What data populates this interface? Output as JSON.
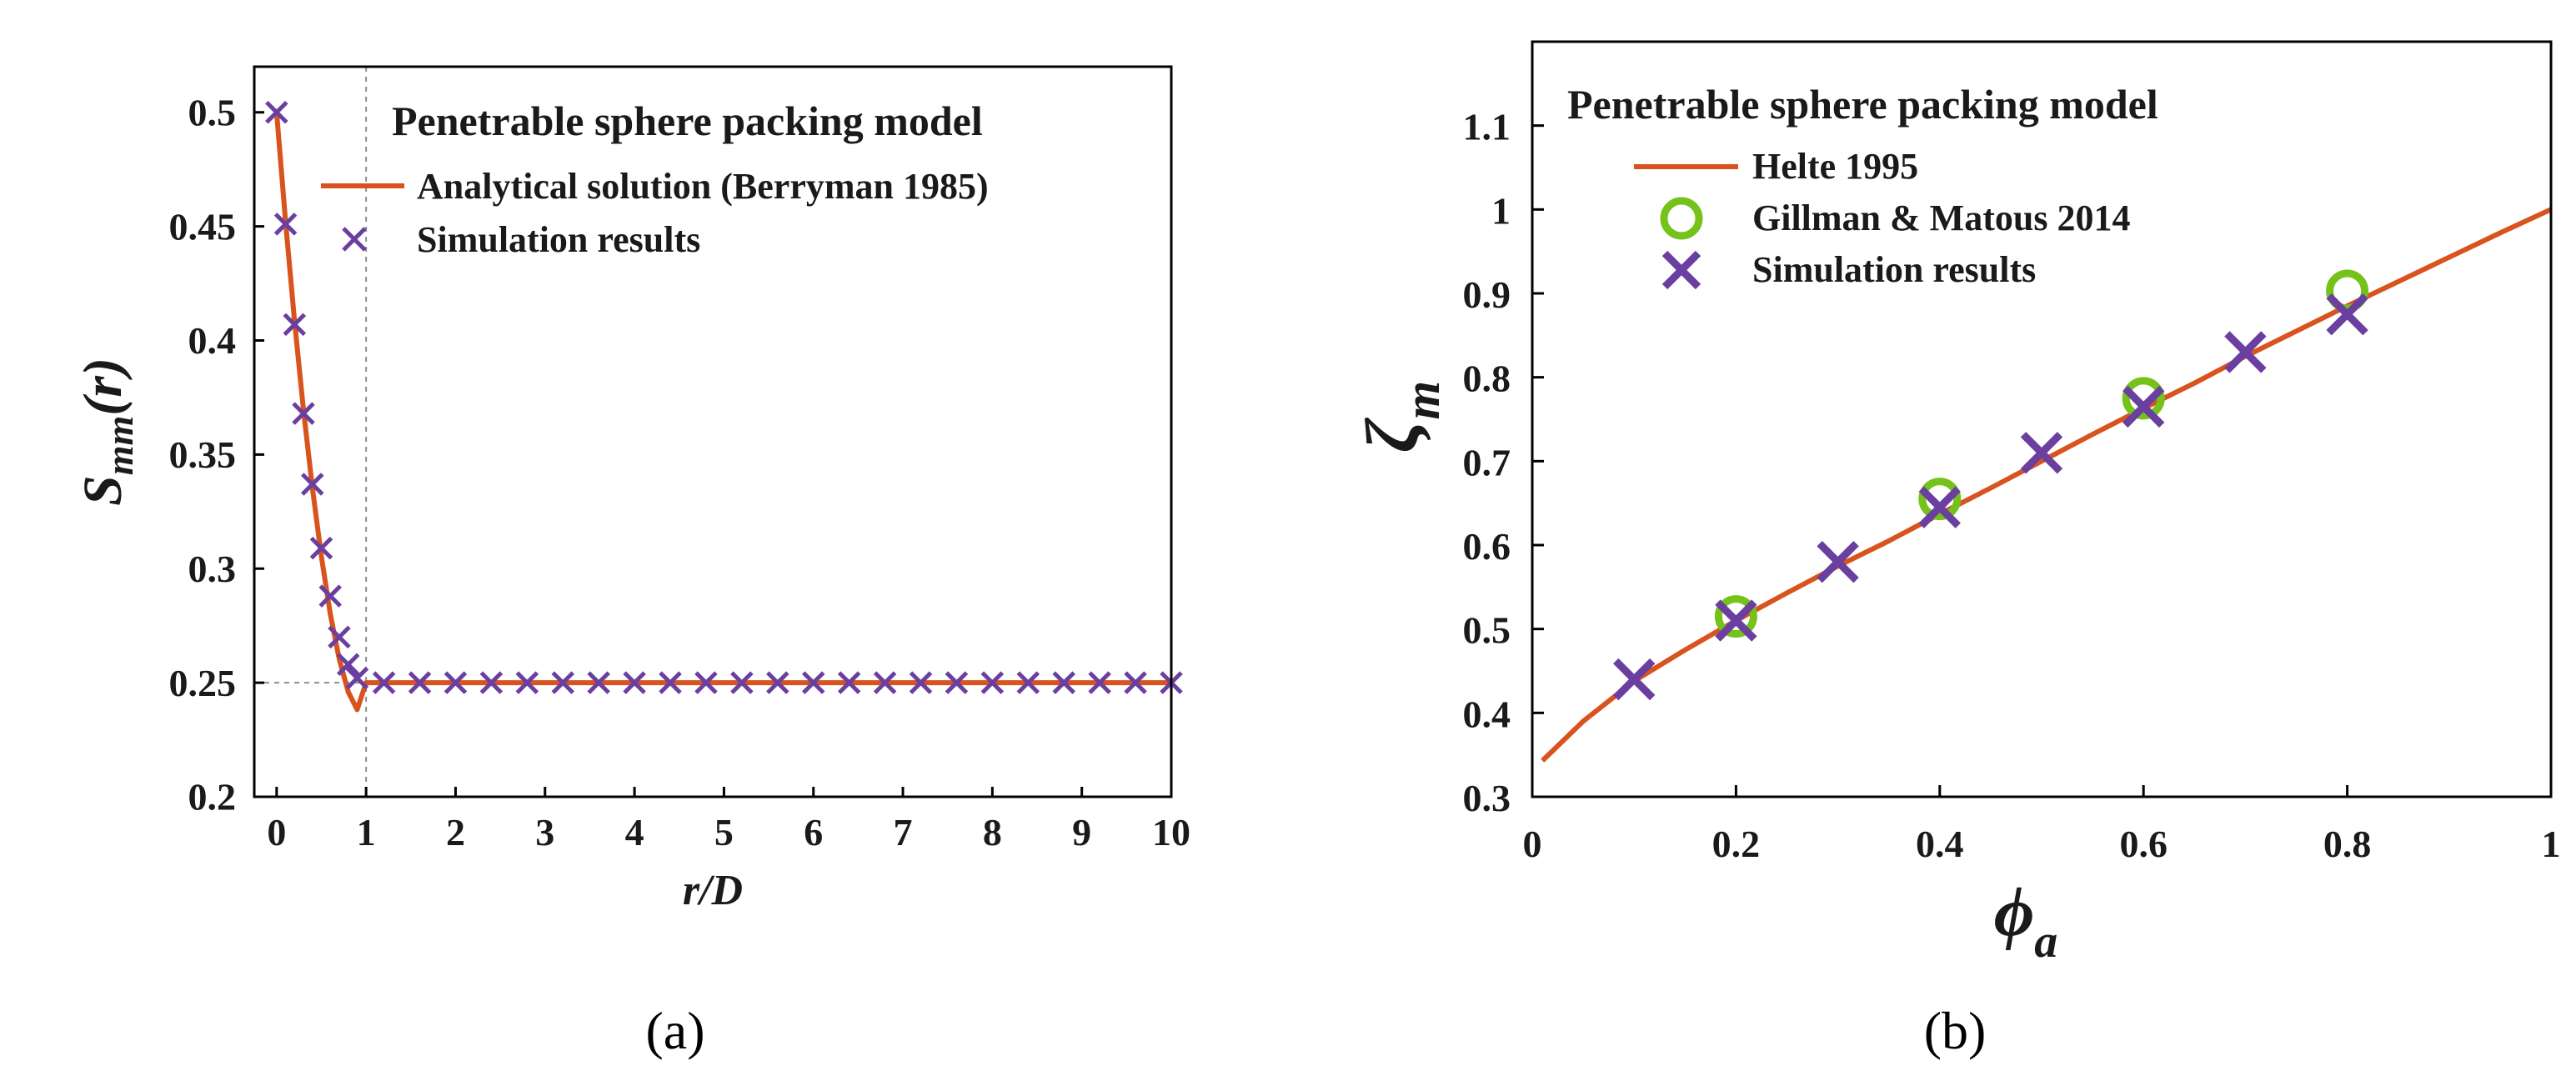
{
  "colors": {
    "line": "#d9531e",
    "marker_x": "#6a3fa0",
    "marker_circle": "#74c21a"
  },
  "chart_data": [
    {
      "panel_label": "(a)",
      "type": "line",
      "title": "",
      "xlabel": "r/D",
      "ylabel": {
        "base": "S",
        "sub": "mm",
        "suffix": "(r)"
      },
      "xlim": [
        -0.25,
        10
      ],
      "ylim": [
        0.2,
        0.52
      ],
      "xticks": [
        0,
        1,
        2,
        3,
        4,
        5,
        6,
        7,
        8,
        9,
        10
      ],
      "xtick_labels": [
        "0",
        "1",
        "2",
        "3",
        "4",
        "5",
        "6",
        "7",
        "8",
        "9",
        "10"
      ],
      "yticks": [
        0.2,
        0.25,
        0.3,
        0.35,
        0.4,
        0.45,
        0.5
      ],
      "ytick_labels": [
        "0.2",
        "0.25",
        "0.3",
        "0.35",
        "0.4",
        "0.45",
        "0.5"
      ],
      "grid": false,
      "guides": {
        "x": 1,
        "y": 0.25
      },
      "legend": {
        "title": "Penetrable sphere packing model",
        "placement": "top-right",
        "entries": [
          "Analytical solution (Berryman 1985)",
          "Simulation results"
        ]
      },
      "series": [
        {
          "name": "Analytical solution (Berryman 1985)",
          "style": "line",
          "x": [
            0,
            0.1,
            0.2,
            0.3,
            0.4,
            0.5,
            0.6,
            0.7,
            0.8,
            0.9,
            1.0,
            2,
            3,
            4,
            5,
            6,
            7,
            8,
            9,
            10
          ],
          "y": [
            0.5,
            0.4518,
            0.4085,
            0.3696,
            0.3352,
            0.3053,
            0.2801,
            0.2602,
            0.246,
            0.2382,
            0.25,
            0.25,
            0.25,
            0.25,
            0.25,
            0.25,
            0.25,
            0.25,
            0.25,
            0.25
          ]
        },
        {
          "name": "Simulation results",
          "style": "x-marker",
          "x": [
            0,
            0.1,
            0.2,
            0.3,
            0.4,
            0.5,
            0.6,
            0.7,
            0.8,
            0.9,
            1.2,
            1.6,
            2.0,
            2.4,
            2.8,
            3.2,
            3.6,
            4.0,
            4.4,
            4.8,
            5.2,
            5.6,
            6.0,
            6.4,
            6.8,
            7.2,
            7.6,
            8.0,
            8.4,
            8.8,
            9.2,
            9.6,
            10.0
          ],
          "y": [
            0.5,
            0.451,
            0.407,
            0.368,
            0.337,
            0.309,
            0.288,
            0.27,
            0.258,
            0.252,
            0.25,
            0.25,
            0.25,
            0.25,
            0.25,
            0.25,
            0.25,
            0.25,
            0.25,
            0.25,
            0.25,
            0.25,
            0.25,
            0.25,
            0.25,
            0.25,
            0.25,
            0.25,
            0.25,
            0.25,
            0.25,
            0.25,
            0.25
          ]
        }
      ]
    },
    {
      "panel_label": "(b)",
      "type": "line",
      "title": "",
      "xlabel": {
        "base": "ϕ",
        "sub": "a"
      },
      "ylabel": {
        "base": "ζ",
        "sub": "m"
      },
      "xlim": [
        0,
        1
      ],
      "ylim": [
        0.3,
        1.2
      ],
      "xticks": [
        0,
        0.2,
        0.4,
        0.6,
        0.8,
        1
      ],
      "xtick_labels": [
        "0",
        "0.2",
        "0.4",
        "0.6",
        "0.8",
        "1"
      ],
      "yticks": [
        0.3,
        0.4,
        0.5,
        0.6,
        0.7,
        0.8,
        0.9,
        1.0,
        1.1
      ],
      "ytick_labels": [
        "0.3",
        "0.4",
        "0.5",
        "0.6",
        "0.7",
        "0.8",
        "0.9",
        "1",
        "1.1"
      ],
      "grid": false,
      "legend": {
        "title": "Penetrable sphere packing model",
        "placement": "top-left",
        "entries": [
          "Helte 1995",
          "Gillman & Matous 2014",
          "Simulation results"
        ]
      },
      "series": [
        {
          "name": "Helte 1995",
          "style": "line",
          "x": [
            0.01,
            0.05,
            0.1,
            0.15,
            0.2,
            0.25,
            0.3,
            0.35,
            0.4,
            0.45,
            0.5,
            0.55,
            0.6,
            0.65,
            0.7,
            0.75,
            0.8,
            0.85,
            0.9,
            0.95,
            1.0
          ],
          "y": [
            0.343,
            0.39,
            0.438,
            0.475,
            0.51,
            0.543,
            0.575,
            0.605,
            0.637,
            0.668,
            0.7,
            0.732,
            0.763,
            0.793,
            0.825,
            0.855,
            0.885,
            0.914,
            0.943,
            0.972,
            1.0
          ]
        },
        {
          "name": "Gillman & Matous 2014",
          "style": "circle-marker",
          "x": [
            0.2,
            0.4,
            0.6,
            0.8
          ],
          "y": [
            0.515,
            0.655,
            0.775,
            0.903
          ]
        },
        {
          "name": "Simulation results",
          "style": "x-marker",
          "x": [
            0.1,
            0.2,
            0.3,
            0.4,
            0.5,
            0.6,
            0.7,
            0.8
          ],
          "y": [
            0.44,
            0.51,
            0.58,
            0.645,
            0.71,
            0.765,
            0.83,
            0.875
          ]
        }
      ]
    }
  ]
}
